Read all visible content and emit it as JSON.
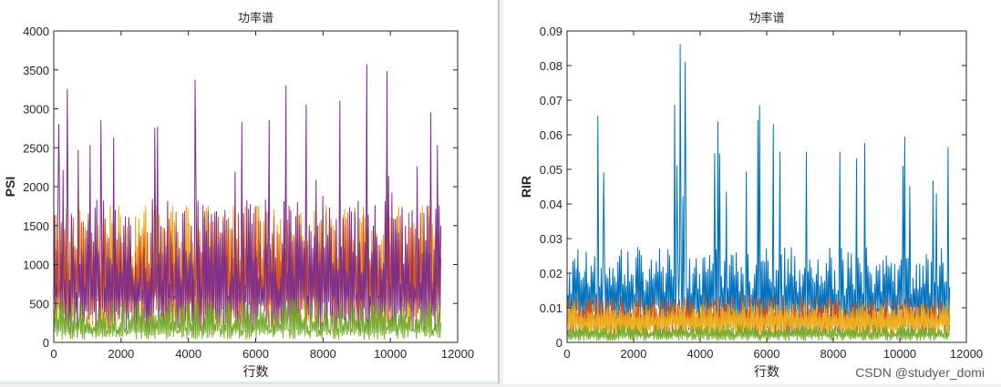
{
  "watermark": "CSDN @studyer_domi",
  "chart_data": [
    {
      "type": "line",
      "title": "功率谱",
      "xlabel": "行数",
      "ylabel": "PSI",
      "xlim": [
        0,
        12000
      ],
      "ylim": [
        0,
        4000
      ],
      "xticks": [
        0,
        2000,
        4000,
        6000,
        8000,
        10000,
        12000
      ],
      "yticks": [
        0,
        500,
        1000,
        1500,
        2000,
        2500,
        3000,
        3500,
        4000
      ],
      "x_extent": 11500,
      "grid": false,
      "series": [
        {
          "color": "#f0a000",
          "typical_value": 1100,
          "spread": 700,
          "peak": 1750
        },
        {
          "color": "#d95319",
          "typical_value": 1000,
          "spread": 650,
          "peak": 1700
        },
        {
          "color": "#7e2f8e",
          "typical_value": 900,
          "spread": 900,
          "peak": 3570,
          "peaks": [
            [
              150,
              2800
            ],
            [
              400,
              3250
            ],
            [
              1400,
              2850
            ],
            [
              3000,
              2750
            ],
            [
              4200,
              3370
            ],
            [
              6400,
              2850
            ],
            [
              6900,
              3300
            ],
            [
              7500,
              3050
            ],
            [
              8500,
              3100
            ],
            [
              9300,
              3570
            ],
            [
              9900,
              3480
            ],
            [
              11200,
              2950
            ],
            [
              11400,
              2530
            ]
          ]
        },
        {
          "color": "#77ac30",
          "typical_value": 250,
          "spread": 300,
          "peak": 700
        }
      ]
    },
    {
      "type": "line",
      "title": "功率谱",
      "xlabel": "行数",
      "ylabel": "RIR",
      "xlim": [
        0,
        12000
      ],
      "ylim": [
        0,
        0.09
      ],
      "xticks": [
        0,
        2000,
        4000,
        6000,
        8000,
        10000,
        12000
      ],
      "yticks": [
        0,
        0.01,
        0.02,
        0.03,
        0.04,
        0.05,
        0.06,
        0.07,
        0.08,
        0.09
      ],
      "x_extent": 11500,
      "grid": false,
      "series": [
        {
          "color": "#0072bd",
          "typical_value": 0.017,
          "spread": 0.01,
          "peak": 0.086,
          "peaks": [
            [
              1100,
              0.049
            ],
            [
              3300,
              0.051
            ],
            [
              3400,
              0.086
            ],
            [
              3550,
              0.081
            ],
            [
              6200,
              0.063
            ],
            [
              6400,
              0.055
            ],
            [
              8200,
              0.055
            ],
            [
              8700,
              0.053
            ],
            [
              10300,
              0.045
            ]
          ]
        },
        {
          "color": "#d95319",
          "typical_value": 0.009,
          "spread": 0.004,
          "peak": 0.016
        },
        {
          "color": "#edb120",
          "typical_value": 0.008,
          "spread": 0.003,
          "peak": 0.014
        },
        {
          "color": "#77ac30",
          "typical_value": 0.003,
          "spread": 0.002,
          "peak": 0.006
        }
      ]
    }
  ]
}
